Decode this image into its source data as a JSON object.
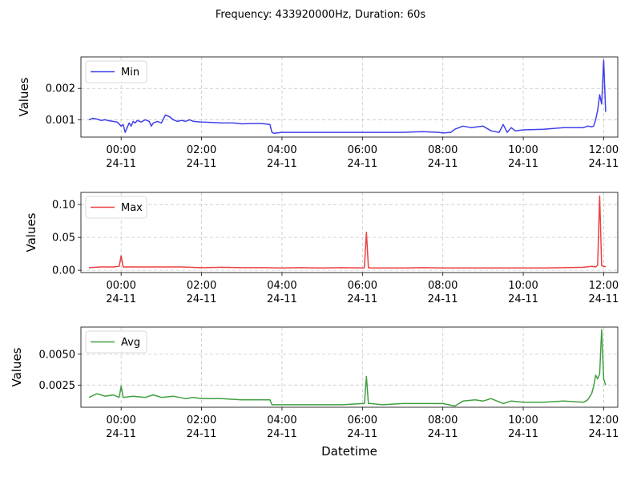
{
  "title": "Frequency: 433920000Hz, Duration: 60s",
  "xlabel": "Datetime",
  "chart_data": [
    {
      "type": "line",
      "ylabel": "Values",
      "legend": "Min",
      "color": "#0000e6",
      "legend_position": "top-left",
      "grid": true,
      "ylim": [
        0.00045,
        0.003
      ],
      "yticks": [
        {
          "v": 0.001,
          "label": "0.001"
        },
        {
          "v": 0.002,
          "label": "0.002"
        }
      ],
      "xlim": [
        -1.0,
        12.35
      ],
      "xticks": [
        {
          "v": 0,
          "label": "00:00",
          "sub": "24-11"
        },
        {
          "v": 2,
          "label": "02:00",
          "sub": "24-11"
        },
        {
          "v": 4,
          "label": "04:00",
          "sub": "24-11"
        },
        {
          "v": 6,
          "label": "06:00",
          "sub": "24-11"
        },
        {
          "v": 8,
          "label": "08:00",
          "sub": "24-11"
        },
        {
          "v": 10,
          "label": "10:00",
          "sub": "24-11"
        },
        {
          "v": 12,
          "label": "12:00",
          "sub": "24-11"
        }
      ],
      "series": {
        "x": [
          -0.8,
          -0.7,
          -0.6,
          -0.5,
          -0.4,
          -0.3,
          -0.2,
          -0.1,
          0.0,
          0.05,
          0.1,
          0.15,
          0.2,
          0.25,
          0.3,
          0.35,
          0.4,
          0.5,
          0.6,
          0.7,
          0.75,
          0.8,
          0.9,
          1.0,
          1.1,
          1.2,
          1.3,
          1.4,
          1.5,
          1.6,
          1.7,
          1.8,
          2.0,
          2.2,
          2.5,
          2.8,
          3.0,
          3.2,
          3.5,
          3.7,
          3.75,
          3.8,
          4.0,
          4.5,
          5.0,
          5.5,
          6.0,
          6.5,
          7.0,
          7.5,
          7.9,
          8.0,
          8.2,
          8.3,
          8.5,
          8.7,
          9.0,
          9.2,
          9.4,
          9.5,
          9.6,
          9.7,
          9.8,
          10.0,
          10.5,
          11.0,
          11.3,
          11.5,
          11.6,
          11.7,
          11.75,
          11.8,
          11.85,
          11.9,
          11.95,
          12.0,
          12.05
        ],
        "y": [
          0.001,
          0.00105,
          0.00102,
          0.00098,
          0.001,
          0.00097,
          0.00095,
          0.00093,
          0.0008,
          0.00085,
          0.0006,
          0.00075,
          0.0009,
          0.0008,
          0.00095,
          0.0009,
          0.00098,
          0.00093,
          0.001,
          0.00095,
          0.0008,
          0.0009,
          0.00095,
          0.0009,
          0.00115,
          0.0011,
          0.001,
          0.00095,
          0.00098,
          0.00095,
          0.001,
          0.00095,
          0.00093,
          0.00092,
          0.0009,
          0.0009,
          0.00087,
          0.00088,
          0.00088,
          0.00085,
          0.0006,
          0.00057,
          0.0006,
          0.0006,
          0.0006,
          0.0006,
          0.0006,
          0.0006,
          0.0006,
          0.00062,
          0.0006,
          0.00058,
          0.0006,
          0.0007,
          0.0008,
          0.00075,
          0.0008,
          0.00065,
          0.0006,
          0.00085,
          0.0006,
          0.00075,
          0.00065,
          0.00068,
          0.0007,
          0.00075,
          0.00075,
          0.00075,
          0.0008,
          0.00078,
          0.0008,
          0.001,
          0.0013,
          0.0018,
          0.0015,
          0.0029,
          0.00125
        ]
      }
    },
    {
      "type": "line",
      "ylabel": "Values",
      "legend": "Max",
      "color": "#e60000",
      "legend_position": "top-left",
      "grid": true,
      "ylim": [
        -0.0035,
        0.1185
      ],
      "yticks": [
        {
          "v": 0.0,
          "label": "0.00"
        },
        {
          "v": 0.05,
          "label": "0.05"
        },
        {
          "v": 0.1,
          "label": "0.10"
        }
      ],
      "xlim": [
        -1.0,
        12.35
      ],
      "xticks": [
        {
          "v": 0,
          "label": "00:00",
          "sub": "24-11"
        },
        {
          "v": 2,
          "label": "02:00",
          "sub": "24-11"
        },
        {
          "v": 4,
          "label": "04:00",
          "sub": "24-11"
        },
        {
          "v": 6,
          "label": "06:00",
          "sub": "24-11"
        },
        {
          "v": 8,
          "label": "08:00",
          "sub": "24-11"
        },
        {
          "v": 10,
          "label": "10:00",
          "sub": "24-11"
        },
        {
          "v": 12,
          "label": "12:00",
          "sub": "24-11"
        }
      ],
      "series": {
        "x": [
          -0.8,
          -0.5,
          -0.2,
          -0.05,
          0.0,
          0.05,
          0.3,
          0.8,
          1.5,
          2.0,
          2.5,
          3.0,
          3.5,
          4.0,
          4.5,
          5.0,
          5.5,
          6.0,
          6.05,
          6.1,
          6.15,
          6.2,
          6.5,
          7.0,
          7.5,
          8.0,
          8.5,
          9.0,
          9.5,
          10.0,
          10.5,
          11.0,
          11.5,
          11.7,
          11.8,
          11.85,
          11.9,
          11.95,
          12.0,
          12.05
        ],
        "y": [
          0.004,
          0.005,
          0.005,
          0.006,
          0.022,
          0.005,
          0.005,
          0.005,
          0.005,
          0.004,
          0.0045,
          0.004,
          0.004,
          0.0035,
          0.004,
          0.0035,
          0.004,
          0.0035,
          0.004,
          0.058,
          0.004,
          0.0035,
          0.0035,
          0.0035,
          0.004,
          0.0035,
          0.0035,
          0.0035,
          0.0035,
          0.0035,
          0.0035,
          0.004,
          0.0045,
          0.006,
          0.005,
          0.008,
          0.113,
          0.007,
          0.006,
          0.0055
        ]
      }
    },
    {
      "type": "line",
      "ylabel": "Values",
      "legend": "Avg",
      "color": "#008000",
      "legend_position": "top-left",
      "grid": true,
      "ylim": [
        0.0007,
        0.0072
      ],
      "yticks": [
        {
          "v": 0.0025,
          "label": "0.0025"
        },
        {
          "v": 0.005,
          "label": "0.0050"
        }
      ],
      "xlim": [
        -1.0,
        12.35
      ],
      "xticks": [
        {
          "v": 0,
          "label": "00:00",
          "sub": "24-11"
        },
        {
          "v": 2,
          "label": "02:00",
          "sub": "24-11"
        },
        {
          "v": 4,
          "label": "04:00",
          "sub": "24-11"
        },
        {
          "v": 6,
          "label": "06:00",
          "sub": "24-11"
        },
        {
          "v": 8,
          "label": "08:00",
          "sub": "24-11"
        },
        {
          "v": 10,
          "label": "10:00",
          "sub": "24-11"
        },
        {
          "v": 12,
          "label": "12:00",
          "sub": "24-11"
        }
      ],
      "series": {
        "x": [
          -0.8,
          -0.6,
          -0.4,
          -0.2,
          -0.05,
          0.0,
          0.05,
          0.3,
          0.6,
          0.8,
          1.0,
          1.3,
          1.6,
          1.8,
          2.0,
          2.5,
          3.0,
          3.5,
          3.7,
          3.75,
          4.0,
          4.5,
          5.0,
          5.5,
          6.0,
          6.05,
          6.1,
          6.15,
          6.2,
          6.5,
          7.0,
          7.5,
          8.0,
          8.3,
          8.5,
          8.8,
          9.0,
          9.2,
          9.5,
          9.7,
          10.0,
          10.5,
          11.0,
          11.5,
          11.6,
          11.7,
          11.75,
          11.8,
          11.85,
          11.9,
          11.95,
          12.0,
          12.05
        ],
        "y": [
          0.0015,
          0.0018,
          0.0016,
          0.0017,
          0.0015,
          0.0024,
          0.0015,
          0.0016,
          0.0015,
          0.0017,
          0.0015,
          0.0016,
          0.0014,
          0.0015,
          0.0014,
          0.0014,
          0.0013,
          0.0013,
          0.0013,
          0.0009,
          0.0009,
          0.0009,
          0.0009,
          0.0009,
          0.001,
          0.001,
          0.0032,
          0.001,
          0.001,
          0.0009,
          0.001,
          0.001,
          0.001,
          0.0008,
          0.0012,
          0.0013,
          0.0012,
          0.0014,
          0.001,
          0.0012,
          0.0011,
          0.0011,
          0.0012,
          0.0011,
          0.0013,
          0.0018,
          0.0024,
          0.0033,
          0.003,
          0.0034,
          0.007,
          0.003,
          0.0025
        ]
      }
    }
  ]
}
